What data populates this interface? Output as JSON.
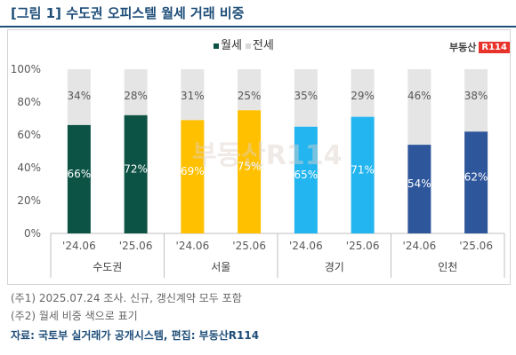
{
  "title": "[그림 1] 수도권 오피스텔 월세 거래 비중",
  "logo": {
    "text": "부동산",
    "box": "R114"
  },
  "watermark": "부동산R114",
  "notes": [
    "(주1) 2025.07.24 조사. 신규, 갱신계약 모두 포함",
    "(주2) 월세 비중 색으로 표기"
  ],
  "source": "자료: 국토부 실거래가 공개시스템, 편집: 부동산R114",
  "chart_data": {
    "type": "bar",
    "stacked": true,
    "legend": [
      {
        "label": "월세",
        "color": "#0d5345"
      },
      {
        "label": "전세",
        "color": "#e5e5e5"
      }
    ],
    "y_ticks": [
      "0%",
      "20%",
      "40%",
      "60%",
      "80%",
      "100%"
    ],
    "ylim": [
      0,
      100
    ],
    "groups": [
      {
        "name": "수도권",
        "color": "#0d5345",
        "bars": [
          {
            "x": "'24.06",
            "monthly": 66,
            "jeonse": 34,
            "monthly_label": "66%",
            "jeonse_label": "34%"
          },
          {
            "x": "'25.06",
            "monthly": 72,
            "jeonse": 28,
            "monthly_label": "72%",
            "jeonse_label": "28%"
          }
        ]
      },
      {
        "name": "서울",
        "color": "#ffc000",
        "bars": [
          {
            "x": "'24.06",
            "monthly": 69,
            "jeonse": 31,
            "monthly_label": "69%",
            "jeonse_label": "31%"
          },
          {
            "x": "'25.06",
            "monthly": 75,
            "jeonse": 25,
            "monthly_label": "75%",
            "jeonse_label": "25%"
          }
        ]
      },
      {
        "name": "경기",
        "color": "#22b5ef",
        "bars": [
          {
            "x": "'24.06",
            "monthly": 65,
            "jeonse": 35,
            "monthly_label": "65%",
            "jeonse_label": "35%"
          },
          {
            "x": "'25.06",
            "monthly": 71,
            "jeonse": 29,
            "monthly_label": "71%",
            "jeonse_label": "29%"
          }
        ]
      },
      {
        "name": "인천",
        "color": "#2e569a",
        "bars": [
          {
            "x": "'24.06",
            "monthly": 54,
            "jeonse": 46,
            "monthly_label": "54%",
            "jeonse_label": "46%"
          },
          {
            "x": "'25.06",
            "monthly": 62,
            "jeonse": 38,
            "monthly_label": "62%",
            "jeonse_label": "38%"
          }
        ]
      }
    ]
  }
}
